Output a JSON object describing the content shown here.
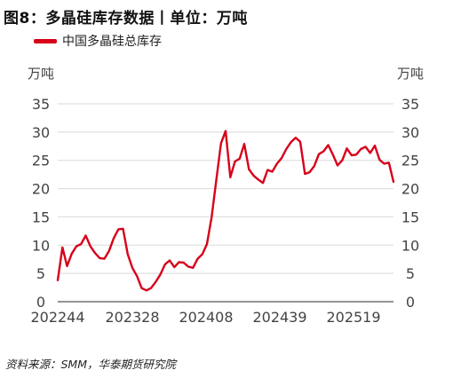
{
  "title": "图8：多晶硅库存数据丨单位：万吨",
  "source": "资料来源：SMM，华泰期货研究院",
  "colors": {
    "series": "#d7001a",
    "grid": "#d9d9d9",
    "axis": "#555555",
    "text": "#444444"
  },
  "chart_data": {
    "type": "line",
    "title": "图8：多晶硅库存数据丨单位：万吨",
    "ylabel_left": "万吨",
    "ylabel_right": "万吨",
    "ylim": [
      0,
      35
    ],
    "yticks": [
      0,
      5,
      10,
      15,
      20,
      25,
      30,
      35
    ],
    "xtick_labels": [
      "202244",
      "202328",
      "202408",
      "202439",
      "202519"
    ],
    "grid": "horizontal",
    "legend": "top-left",
    "series": [
      {
        "name": "中国多晶硅总库存",
        "values": [
          3.8,
          9.6,
          6.3,
          8.5,
          9.8,
          10.2,
          11.7,
          9.8,
          8.6,
          7.7,
          7.6,
          9.0,
          11.2,
          12.8,
          12.9,
          8.4,
          6.0,
          4.5,
          2.4,
          2.0,
          2.4,
          3.5,
          4.8,
          6.6,
          7.3,
          6.1,
          7.0,
          6.9,
          6.2,
          6.0,
          7.6,
          8.4,
          10.2,
          15.0,
          21.5,
          28.0,
          30.2,
          22.0,
          24.8,
          25.3,
          27.9,
          23.4,
          22.3,
          21.6,
          21.0,
          23.3,
          23.0,
          24.4,
          25.4,
          27.0,
          28.2,
          29.0,
          28.3,
          22.6,
          22.9,
          24.0,
          26.1,
          26.6,
          27.7,
          26.0,
          24.1,
          25.0,
          27.1,
          25.9,
          26.0,
          27.0,
          27.4,
          26.3,
          27.6,
          25.1,
          24.4,
          24.6,
          21.2
        ]
      }
    ]
  }
}
